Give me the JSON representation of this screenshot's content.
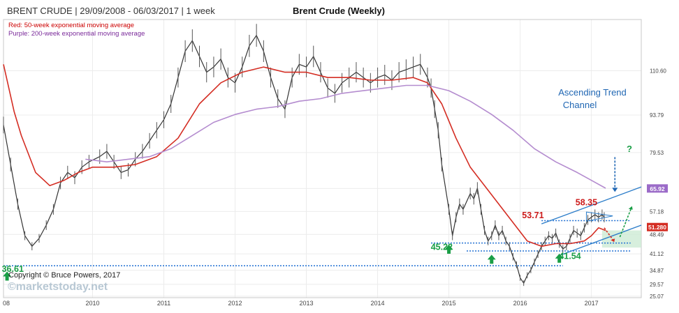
{
  "chart_data": {
    "type": "line",
    "title": "Brent Crude (Weekly)",
    "header_left": "BRENT CRUDE | 29/09/2008 - 06/03/2017 | 1 week",
    "notes": [
      {
        "text": "Red: 50-week exponential moving average",
        "color": "#cc0000"
      },
      {
        "text": "Purple: 200-week exponential moving average",
        "color": "#7a2a9a"
      }
    ],
    "copyright": "Copyright © Bruce Powers, 2017",
    "watermark": "©marketstoday.net",
    "x_tick_labels": [
      "08",
      "2010",
      "2011",
      "2012",
      "2013",
      "2014",
      "2015",
      "2016",
      "2017"
    ],
    "x_tick_dates": [
      2008.75,
      2010.0,
      2011.0,
      2012.0,
      2013.0,
      2014.0,
      2015.0,
      2016.0,
      2017.0
    ],
    "xlim": [
      2008.75,
      2017.7
    ],
    "y_scale": "linear",
    "y_ticks": [
      25.07,
      29.57,
      34.87,
      41.12,
      48.49,
      57.18,
      65.92,
      79.53,
      93.79,
      110.6
    ],
    "ylim": [
      24.5,
      130
    ],
    "y_tag_values": [
      {
        "label": "65.92",
        "value": 65.92,
        "color": "#9b6bc8"
      },
      {
        "label": "51.280",
        "value": 51.28,
        "color": "#d42d23"
      }
    ],
    "colors": {
      "price": "#333333",
      "ema50": "#d42d23",
      "ema200": "#b48ccf",
      "channel": "#2a7cc9",
      "level": "#1f6fd1",
      "arrow_up": "#1a9e46",
      "label_red": "#cc1a1a",
      "label_green": "#1a9e46",
      "annot_blue": "#1f66b3"
    },
    "series": [
      {
        "name": "Brent Crude",
        "role": "price",
        "x": [
          2008.75,
          2008.85,
          2008.95,
          2009.05,
          2009.15,
          2009.25,
          2009.35,
          2009.45,
          2009.55,
          2009.65,
          2009.75,
          2009.85,
          2009.95,
          2010.1,
          2010.2,
          2010.3,
          2010.4,
          2010.5,
          2010.6,
          2010.7,
          2010.8,
          2010.9,
          2011.0,
          2011.1,
          2011.2,
          2011.3,
          2011.4,
          2011.5,
          2011.6,
          2011.7,
          2011.8,
          2011.9,
          2012.0,
          2012.1,
          2012.2,
          2012.3,
          2012.4,
          2012.5,
          2012.6,
          2012.7,
          2012.8,
          2012.9,
          2013.0,
          2013.1,
          2013.2,
          2013.3,
          2013.4,
          2013.5,
          2013.6,
          2013.7,
          2013.8,
          2013.9,
          2014.0,
          2014.1,
          2014.2,
          2014.3,
          2014.4,
          2014.5,
          2014.6,
          2014.7,
          2014.75,
          2014.8,
          2014.85,
          2014.9,
          2015.0,
          2015.05,
          2015.1,
          2015.15,
          2015.2,
          2015.3,
          2015.35,
          2015.4,
          2015.45,
          2015.5,
          2015.55,
          2015.6,
          2015.65,
          2015.7,
          2015.75,
          2015.8,
          2015.85,
          2015.9,
          2015.95,
          2016.0,
          2016.05,
          2016.1,
          2016.15,
          2016.2,
          2016.25,
          2016.3,
          2016.35,
          2016.4,
          2016.45,
          2016.5,
          2016.55,
          2016.6,
          2016.65,
          2016.7,
          2016.75,
          2016.8,
          2016.85,
          2016.9,
          2016.95,
          2017.0,
          2017.05,
          2017.1,
          2017.15,
          2017.18
        ],
        "y": [
          90,
          75,
          60,
          48,
          44,
          47,
          52,
          58,
          68,
          72,
          70,
          74,
          76,
          78,
          80,
          76,
          72,
          73,
          77,
          80,
          84,
          88,
          92,
          98,
          108,
          118,
          122,
          116,
          110,
          112,
          115,
          108,
          106,
          112,
          120,
          124,
          118,
          108,
          100,
          96,
          108,
          113,
          112,
          116,
          110,
          104,
          102,
          106,
          108,
          110,
          108,
          106,
          108,
          109,
          107,
          110,
          111,
          112,
          113,
          108,
          104,
          96,
          88,
          75,
          58,
          48,
          55,
          60,
          58,
          64,
          62,
          66,
          58,
          50,
          46,
          48,
          52,
          48,
          50,
          46,
          44,
          40,
          37,
          32,
          30,
          33,
          35,
          38,
          41,
          44,
          46,
          48,
          47,
          49,
          45,
          43,
          44,
          47,
          50,
          49,
          48,
          51,
          54,
          55,
          56,
          55,
          56,
          55
        ]
      },
      {
        "name": "50-week EMA",
        "role": "ema50",
        "x": [
          2008.75,
          2008.9,
          2009.0,
          2009.2,
          2009.4,
          2009.6,
          2009.8,
          2010.0,
          2010.3,
          2010.6,
          2010.9,
          2011.2,
          2011.5,
          2011.8,
          2012.1,
          2012.4,
          2012.7,
          2013.0,
          2013.3,
          2013.6,
          2013.9,
          2014.2,
          2014.5,
          2014.7,
          2014.9,
          2015.1,
          2015.3,
          2015.5,
          2015.7,
          2015.9,
          2016.1,
          2016.3,
          2016.5,
          2016.7,
          2016.9,
          2017.0,
          2017.1,
          2017.2
        ],
        "y": [
          113,
          95,
          86,
          72,
          67,
          69,
          72,
          74,
          74,
          75,
          78,
          85,
          98,
          106,
          110,
          112,
          110,
          110,
          108,
          108,
          107,
          107,
          108,
          106,
          98,
          85,
          74,
          67,
          60,
          53,
          46,
          44,
          45,
          45,
          46,
          48,
          51,
          50
        ]
      },
      {
        "name": "200-week EMA",
        "role": "ema200",
        "x": [
          2009.9,
          2010.2,
          2010.5,
          2010.8,
          2011.1,
          2011.4,
          2011.7,
          2012.0,
          2012.3,
          2012.6,
          2012.9,
          2013.2,
          2013.5,
          2013.8,
          2014.1,
          2014.4,
          2014.7,
          2015.0,
          2015.3,
          2015.6,
          2015.9,
          2016.2,
          2016.5,
          2016.8,
          2017.0,
          2017.2
        ],
        "y": [
          77,
          76,
          77,
          78,
          81,
          86,
          91,
          94,
          96,
          97,
          99,
          100,
          102,
          103,
          104,
          105,
          105,
          103,
          99,
          94,
          88,
          81,
          76,
          72,
          69,
          66
        ]
      }
    ],
    "levels": [
      {
        "value": 36.61,
        "x0": 2008.75,
        "x1": 2016.6
      },
      {
        "value": 45.22,
        "x0": 2014.75,
        "x1": 2017.55
      },
      {
        "value": 42.2,
        "x0": 2015.25,
        "x1": 2017.55
      },
      {
        "value": 53.71,
        "x0": 2016.3,
        "x1": 2017.55
      }
    ],
    "channel": [
      {
        "x0": 2016.3,
        "y0": 52.5,
        "x1": 2017.7,
        "y1": 66.5
      },
      {
        "x0": 2016.55,
        "y0": 40.5,
        "x1": 2017.7,
        "y1": 52.0
      }
    ],
    "annotations": [
      {
        "text": "53.71",
        "role": "peak",
        "x": 2016.18,
        "y": 54.6,
        "arrow": null
      },
      {
        "text": "58.35",
        "role": "peak",
        "x": 2016.93,
        "y": 59.6,
        "arrow": null
      },
      {
        "text": "45.22",
        "role": "support",
        "x": 2014.9,
        "y": 42.6,
        "arrow": {
          "x": 2015.0,
          "y": 44.6
        }
      },
      {
        "text": "41.54",
        "role": "support",
        "x": 2016.7,
        "y": 39.2,
        "arrow": {
          "x": 2016.55,
          "y": 41.2
        }
      },
      {
        "text": "36.61",
        "role": "support",
        "x": 2008.88,
        "y": 34.3,
        "arrow": {
          "x": 2008.8,
          "y": 34.4
        }
      },
      {
        "text": "",
        "role": "arrow-only",
        "x": 2015.6,
        "y": 40.8,
        "arrow": {
          "x": 2015.6,
          "y": 40.8
        }
      }
    ],
    "channel_label": [
      "Ascending Trend",
      "Channel"
    ],
    "question_mark": "?"
  }
}
